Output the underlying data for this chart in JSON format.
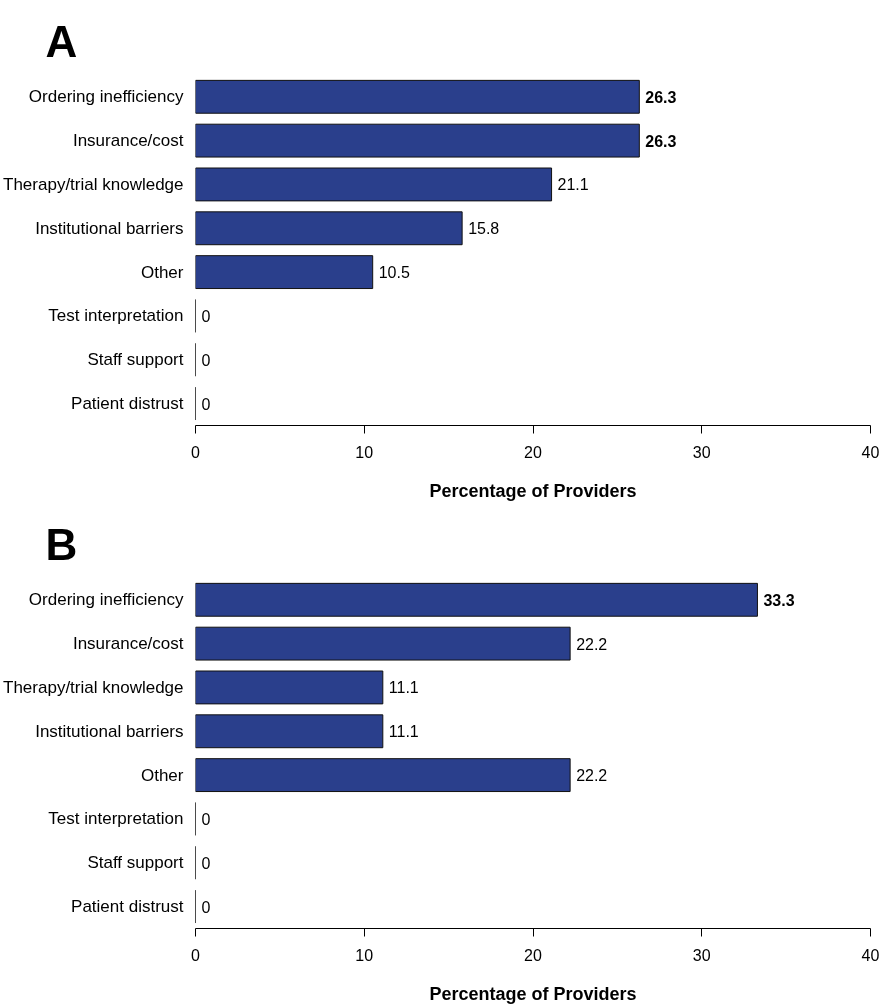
{
  "chart_data": [
    {
      "type": "bar",
      "orientation": "horizontal",
      "title": "A",
      "xlabel": "Percentage of Providers",
      "categories": [
        "Ordering inefficiency",
        "Insurance/cost",
        "Therapy/trial knowledge",
        "Institutional barriers",
        "Other",
        "Test interpretation",
        "Staff support",
        "Patient distrust"
      ],
      "values": [
        26.3,
        26.3,
        21.1,
        15.8,
        10.5,
        0,
        0,
        0
      ],
      "color": "#2a3f8c",
      "xlim": [
        0,
        40
      ],
      "xticks": [
        0,
        10,
        20,
        30,
        40
      ],
      "data_labels": true,
      "grid": false
    },
    {
      "type": "bar",
      "orientation": "horizontal",
      "title": "B",
      "xlabel": "Percentage of Providers",
      "categories": [
        "Ordering inefficiency",
        "Insurance/cost",
        "Therapy/trial knowledge",
        "Institutional barriers",
        "Other",
        "Test interpretation",
        "Staff support",
        "Patient distrust"
      ],
      "values": [
        33.3,
        22.2,
        11.1,
        11.1,
        22.2,
        0,
        0,
        0
      ],
      "color": "#2a3f8c",
      "xlim": [
        0,
        40
      ],
      "xticks": [
        0,
        10,
        20,
        30,
        40
      ],
      "data_labels": true,
      "grid": false
    }
  ]
}
